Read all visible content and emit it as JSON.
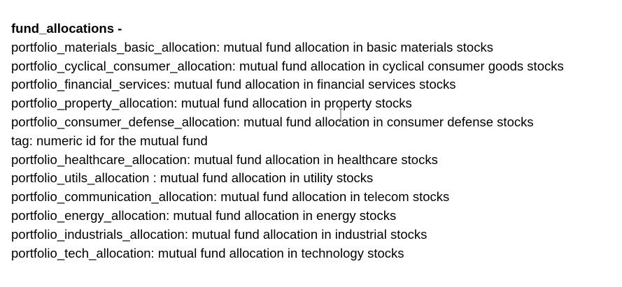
{
  "document": {
    "heading": "fund_allocations -",
    "lines": [
      "portfolio_materials_basic_allocation: mutual fund allocation in basic materials stocks",
      "portfolio_cyclical_consumer_allocation: mutual fund allocation in cyclical consumer goods stocks",
      "portfolio_financial_services: mutual fund allocation in financial services stocks",
      "portfolio_property_allocation: mutual fund allocation in property stocks",
      "portfolio_consumer_defense_allocation: mutual fund allocation in consumer defense stocks",
      "tag: numeric id for the mutual fund",
      "portfolio_healthcare_allocation: mutual fund allocation in healthcare stocks",
      "portfolio_utils_allocation : mutual fund allocation in utility stocks",
      "portfolio_communication_allocation: mutual fund allocation in telecom stocks",
      "portfolio_energy_allocation: mutual fund allocation in energy stocks",
      "portfolio_industrials_allocation: mutual fund allocation in industrial stocks",
      "portfolio_tech_allocation: mutual fund allocation in technology stocks"
    ]
  },
  "cursor": {
    "icon": "text-cursor-icon"
  }
}
